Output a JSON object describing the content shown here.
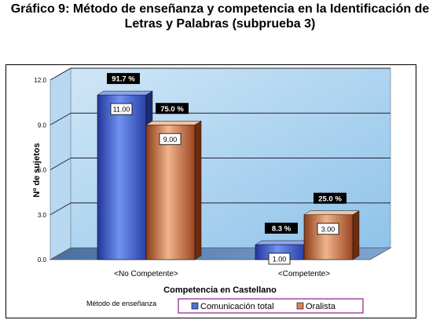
{
  "title_line1": "Gráfico 9: Método de enseñanza y competencia en la Identificación de",
  "title_line2": "Letras y Palabras (subprueba 3)",
  "chart_data": {
    "type": "bar",
    "categories": [
      "<No Competente>",
      "<Competente>"
    ],
    "series": [
      {
        "name": "Comunicación total",
        "values": [
          11.0,
          1.0
        ],
        "value_labels": [
          "11.00",
          "1.00"
        ],
        "percent_labels": [
          "91.7 %",
          "8.3 %"
        ],
        "color": "#4f6fd6"
      },
      {
        "name": "Oralista",
        "values": [
          9.0,
          3.0
        ],
        "value_labels": [
          "9.00",
          "3.00"
        ],
        "percent_labels": [
          "75.0 %",
          "25.0 %"
        ],
        "color": "#d9835a"
      }
    ],
    "ylabel": "Nº de sujetos",
    "xlabel": "Competencia en Castellano",
    "ylim": [
      0,
      12
    ],
    "yticks": [
      "0.0",
      "3.0",
      "6.0",
      "9.0",
      "12.0"
    ],
    "grid": true,
    "legend_title": "Método de enseñanza",
    "legend_position": "bottom-right"
  }
}
